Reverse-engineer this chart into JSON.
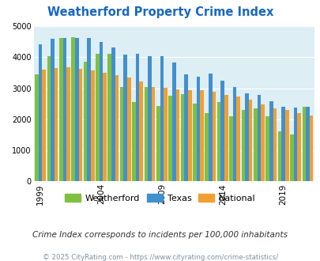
{
  "title": "Weatherford Property Crime Index",
  "subtitle": "Crime Index corresponds to incidents per 100,000 inhabitants",
  "footer": "© 2025 CityRating.com - https://www.cityrating.com/crime-statistics/",
  "years": [
    1999,
    2000,
    2001,
    2002,
    2003,
    2004,
    2005,
    2006,
    2007,
    2008,
    2009,
    2010,
    2011,
    2012,
    2013,
    2014,
    2015,
    2016,
    2017,
    2018,
    2019,
    2020,
    2021
  ],
  "weatherford": [
    3450,
    4020,
    4620,
    4650,
    3850,
    4100,
    4100,
    3050,
    2550,
    3050,
    2420,
    2750,
    2800,
    2500,
    2200,
    2550,
    2100,
    2300,
    2350,
    2100,
    1620,
    1500,
    2390
  ],
  "texas": [
    4420,
    4590,
    4620,
    4620,
    4630,
    4500,
    4320,
    4080,
    4110,
    4030,
    4040,
    3820,
    3450,
    3380,
    3480,
    3250,
    3040,
    2840,
    2780,
    2570,
    2400,
    2380,
    2390
  ],
  "national": [
    3600,
    3650,
    3670,
    3620,
    3580,
    3490,
    3430,
    3340,
    3230,
    3050,
    3020,
    2970,
    2940,
    2950,
    2880,
    2780,
    2730,
    2620,
    2490,
    2360,
    2310,
    2200,
    2130
  ],
  "weatherford_color": "#80c040",
  "texas_color": "#4090d0",
  "national_color": "#f0a030",
  "background_color": "#ddeef5",
  "ylim": [
    0,
    5000
  ],
  "yticks": [
    0,
    1000,
    2000,
    3000,
    4000,
    5000
  ],
  "title_color": "#1868c0",
  "subtitle_color": "#303030",
  "footer_color": "#8090a0"
}
